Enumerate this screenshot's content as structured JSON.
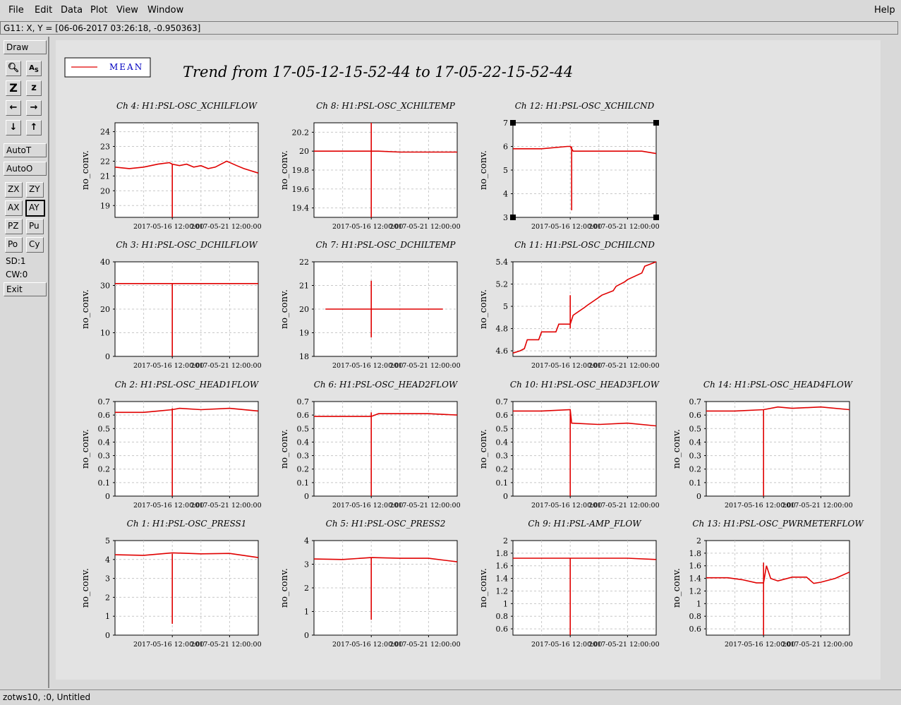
{
  "menu": {
    "file": "File",
    "edit": "Edit",
    "data": "Data",
    "plot": "Plot",
    "view": "View",
    "window": "Window",
    "help": "Help"
  },
  "coord_readout": "G11: X, Y = [06-06-2017 03:26:18, -0.950363]",
  "toolbar": {
    "draw": "Draw",
    "autot": "AutoT",
    "autoo": "AutoO",
    "zx": "ZX",
    "zy": "ZY",
    "ax": "AX",
    "ay": "AY",
    "pz": "PZ",
    "pu": "Pu",
    "po": "Po",
    "cy": "Cy",
    "sd": "SD:1",
    "cw": "CW:0",
    "exit": "Exit"
  },
  "icons": [
    "zoom-tool-icon",
    "text-tool-icon",
    "zoom-in-icon",
    "zoom-out-icon",
    "arrow-left-icon",
    "arrow-right-icon",
    "arrow-down-icon",
    "arrow-up-icon"
  ],
  "status_text": "zotws10, :0, Untitled",
  "legend_label": "MEAN",
  "trend_title": "Trend from 17-05-12-15-52-44 to 17-05-22-15-52-44",
  "colors": {
    "trace": "#e00000",
    "legend_text": "#0000c0",
    "grid": "#c8c8c8",
    "plot_bg": "#ffffff"
  },
  "chart_data": [
    {
      "type": "line",
      "title": "Ch 4: H1:PSL-OSC_XCHILFLOW",
      "ylabel": "no_conv.",
      "yticks": [
        "24",
        "23",
        "22",
        "21",
        "20",
        "19"
      ],
      "ylim": [
        18.2,
        24.6
      ],
      "xticks": [
        "2017-05-16 12:00:00",
        "2017-05-21 12:00:00"
      ],
      "series": [
        {
          "name": "MEAN",
          "x": [
            0,
            0.1,
            0.2,
            0.3,
            0.38,
            0.4,
            0.45,
            0.5,
            0.55,
            0.6,
            0.65,
            0.7,
            0.78,
            0.85,
            0.9,
            1
          ],
          "values": [
            21.6,
            21.5,
            21.6,
            21.8,
            21.9,
            21.8,
            21.7,
            21.8,
            21.6,
            21.7,
            21.5,
            21.6,
            22.0,
            21.7,
            21.5,
            21.2
          ]
        }
      ],
      "spike": {
        "x": 0.4,
        "values": [
          21.8,
          18.2
        ]
      }
    },
    {
      "type": "line",
      "title": "Ch 8: H1:PSL-OSC_XCHILTEMP",
      "ylabel": "no_conv.",
      "yticks": [
        "20.2",
        "20",
        "19.8",
        "19.6",
        "19.4"
      ],
      "ylim": [
        19.3,
        20.3
      ],
      "xticks": [
        "2017-05-16 12:00:00",
        "2017-05-21 12:00:00"
      ],
      "series": [
        {
          "name": "MEAN",
          "x": [
            0,
            0.2,
            0.38,
            0.45,
            0.6,
            0.8,
            1
          ],
          "values": [
            20.0,
            20.0,
            20.0,
            20.0,
            19.99,
            19.99,
            19.99
          ]
        }
      ],
      "spike": {
        "x": 0.4,
        "values": [
          20.3,
          19.3
        ]
      }
    },
    {
      "type": "line",
      "title": "Ch 12: H1:PSL-OSC_XCHILCND",
      "ylabel": "no_conv.",
      "yticks": [
        "7",
        "6",
        "5",
        "4",
        "3"
      ],
      "ylim": [
        3,
        7
      ],
      "xticks": [
        "2017-05-16 12:00:00",
        "2017-05-21 12:00:00"
      ],
      "series": [
        {
          "name": "MEAN",
          "x": [
            0,
            0.2,
            0.38,
            0.4,
            0.42,
            0.5,
            0.6,
            0.8,
            0.9,
            1
          ],
          "values": [
            5.9,
            5.9,
            6.0,
            6.0,
            5.8,
            5.8,
            5.8,
            5.8,
            5.8,
            5.7
          ]
        }
      ],
      "spike": {
        "x": 0.41,
        "values": [
          6.0,
          3.3
        ]
      }
    },
    {
      "type": "line",
      "title": "Ch 3: H1:PSL-OSC_DCHILFLOW",
      "ylabel": "no_conv.",
      "yticks": [
        "40",
        "30",
        "20",
        "10",
        "0"
      ],
      "ylim": [
        0,
        40
      ],
      "xticks": [
        "2017-05-16 12:00:00",
        "2017-05-21 12:00:00"
      ],
      "series": [
        {
          "name": "MEAN",
          "x": [
            0,
            0.4,
            1
          ],
          "values": [
            30.8,
            30.8,
            30.8
          ]
        }
      ],
      "spike": {
        "x": 0.4,
        "values": [
          30.8,
          0
        ]
      }
    },
    {
      "type": "line",
      "title": "Ch 7: H1:PSL-OSC_DCHILTEMP",
      "ylabel": "no_conv.",
      "yticks": [
        "22",
        "21",
        "20",
        "19",
        "18"
      ],
      "ylim": [
        18,
        22
      ],
      "xticks": [
        "2017-05-16 12:00:00",
        "2017-05-21 12:00:00"
      ],
      "series": [
        {
          "name": "MEAN",
          "x": [
            0.08,
            0.4,
            0.9
          ],
          "values": [
            20,
            20,
            20
          ]
        }
      ],
      "spike": {
        "x": 0.4,
        "values": [
          21.2,
          18.8
        ]
      }
    },
    {
      "type": "line",
      "title": "Ch 11: H1:PSL-OSC_DCHILCND",
      "ylabel": "no_conv.",
      "yticks": [
        "5.4",
        "5.2",
        "5",
        "4.8",
        "4.6"
      ],
      "ylim": [
        4.55,
        5.4
      ],
      "xticks": [
        "2017-05-16 12:00:00",
        "2017-05-21 12:00:00"
      ],
      "series": [
        {
          "name": "MEAN",
          "x": [
            0,
            0.05,
            0.08,
            0.1,
            0.18,
            0.2,
            0.3,
            0.32,
            0.4,
            0.42,
            0.5,
            0.52,
            0.6,
            0.62,
            0.7,
            0.72,
            0.78,
            0.8,
            0.9,
            0.92,
            1
          ],
          "values": [
            4.58,
            4.6,
            4.62,
            4.7,
            4.7,
            4.77,
            4.77,
            4.84,
            4.84,
            4.92,
            4.99,
            5.01,
            5.08,
            5.1,
            5.14,
            5.18,
            5.22,
            5.24,
            5.3,
            5.36,
            5.4
          ]
        }
      ],
      "spike": {
        "x": 0.4,
        "values": [
          5.1,
          4.8
        ]
      }
    },
    {
      "type": "line",
      "title": "Ch 2: H1:PSL-OSC_HEAD1FLOW",
      "ylabel": "no_conv.",
      "yticks": [
        "0.7",
        "0.6",
        "0.5",
        "0.4",
        "0.3",
        "0.2",
        "0.1",
        "0"
      ],
      "ylim": [
        0,
        0.7
      ],
      "xticks": [
        "2017-05-16 12:00:00",
        "2017-05-21 12:00:00"
      ],
      "series": [
        {
          "name": "MEAN",
          "x": [
            0,
            0.1,
            0.2,
            0.3,
            0.4,
            0.45,
            0.6,
            0.8,
            1
          ],
          "values": [
            0.62,
            0.62,
            0.62,
            0.63,
            0.64,
            0.65,
            0.64,
            0.65,
            0.63
          ]
        }
      ],
      "spike": {
        "x": 0.4,
        "values": [
          0.65,
          0
        ]
      }
    },
    {
      "type": "line",
      "title": "Ch 6: H1:PSL-OSC_HEAD2FLOW",
      "ylabel": "no_conv.",
      "yticks": [
        "0.7",
        "0.6",
        "0.5",
        "0.4",
        "0.3",
        "0.2",
        "0.1",
        "0"
      ],
      "ylim": [
        0,
        0.7
      ],
      "xticks": [
        "2017-05-16 12:00:00",
        "2017-05-21 12:00:00"
      ],
      "series": [
        {
          "name": "MEAN",
          "x": [
            0,
            0.2,
            0.4,
            0.45,
            0.6,
            0.8,
            1
          ],
          "values": [
            0.59,
            0.59,
            0.59,
            0.61,
            0.61,
            0.61,
            0.6
          ]
        }
      ],
      "spike": {
        "x": 0.4,
        "values": [
          0.62,
          0
        ]
      }
    },
    {
      "type": "line",
      "title": "Ch 10: H1:PSL-OSC_HEAD3FLOW",
      "ylabel": "no_conv.",
      "yticks": [
        "0.7",
        "0.6",
        "0.5",
        "0.4",
        "0.3",
        "0.2",
        "0.1",
        "0"
      ],
      "ylim": [
        0,
        0.7
      ],
      "xticks": [
        "2017-05-16 12:00:00",
        "2017-05-21 12:00:00"
      ],
      "series": [
        {
          "name": "MEAN",
          "x": [
            0,
            0.2,
            0.4,
            0.41,
            0.6,
            0.8,
            1
          ],
          "values": [
            0.63,
            0.63,
            0.64,
            0.54,
            0.53,
            0.54,
            0.52
          ]
        }
      ],
      "spike": {
        "x": 0.4,
        "values": [
          0.64,
          0
        ]
      }
    },
    {
      "type": "line",
      "title": "Ch 14: H1:PSL-OSC_HEAD4FLOW",
      "ylabel": "no_conv.",
      "yticks": [
        "0.7",
        "0.6",
        "0.5",
        "0.4",
        "0.3",
        "0.2",
        "0.1",
        "0"
      ],
      "ylim": [
        0,
        0.7
      ],
      "xticks": [
        "2017-05-16 12:00:00",
        "2017-05-21 12:00:00"
      ],
      "series": [
        {
          "name": "MEAN",
          "x": [
            0,
            0.2,
            0.4,
            0.5,
            0.6,
            0.8,
            1
          ],
          "values": [
            0.63,
            0.63,
            0.64,
            0.66,
            0.65,
            0.66,
            0.64
          ]
        }
      ],
      "spike": {
        "x": 0.4,
        "values": [
          0.64,
          0
        ]
      }
    },
    {
      "type": "line",
      "title": "Ch 1: H1:PSL-OSC_PRESS1",
      "ylabel": "no_conv.",
      "yticks": [
        "5",
        "4",
        "3",
        "2",
        "1",
        "0"
      ],
      "ylim": [
        0,
        5
      ],
      "xticks": [
        "2017-05-16 12:00:00",
        "2017-05-21 12:00:00"
      ],
      "series": [
        {
          "name": "MEAN",
          "x": [
            0,
            0.2,
            0.4,
            0.6,
            0.8,
            1
          ],
          "values": [
            4.25,
            4.22,
            4.35,
            4.3,
            4.32,
            4.1
          ]
        }
      ],
      "spike": {
        "x": 0.4,
        "values": [
          4.3,
          0.6
        ]
      }
    },
    {
      "type": "line",
      "title": "Ch 5: H1:PSL-OSC_PRESS2",
      "ylabel": "no_conv.",
      "yticks": [
        "4",
        "3",
        "2",
        "1",
        "0"
      ],
      "ylim": [
        0,
        4
      ],
      "xticks": [
        "2017-05-16 12:00:00",
        "2017-05-21 12:00:00"
      ],
      "series": [
        {
          "name": "MEAN",
          "x": [
            0,
            0.2,
            0.4,
            0.6,
            0.8,
            1
          ],
          "values": [
            3.22,
            3.2,
            3.28,
            3.25,
            3.25,
            3.1
          ]
        }
      ],
      "spike": {
        "x": 0.4,
        "values": [
          3.28,
          0.65
        ]
      }
    },
    {
      "type": "line",
      "title": "Ch 9: H1:PSL-AMP_FLOW",
      "ylabel": "no_conv.",
      "yticks": [
        "2",
        "1.8",
        "1.6",
        "1.4",
        "1.2",
        "1",
        "0.8",
        "0.6"
      ],
      "ylim": [
        0.5,
        2
      ],
      "xticks": [
        "2017-05-16 12:00:00",
        "2017-05-21 12:00:00"
      ],
      "series": [
        {
          "name": "MEAN",
          "x": [
            0,
            0.4,
            0.8,
            1
          ],
          "values": [
            1.72,
            1.72,
            1.72,
            1.7
          ]
        }
      ],
      "spike": {
        "x": 0.4,
        "values": [
          1.72,
          0.5
        ]
      }
    },
    {
      "type": "line",
      "title": "Ch 13: H1:PSL-OSC_PWRMETERFLOW",
      "ylabel": "no_conv.",
      "yticks": [
        "2",
        "1.8",
        "1.6",
        "1.4",
        "1.2",
        "1",
        "0.8",
        "0.6"
      ],
      "ylim": [
        0.5,
        2
      ],
      "xticks": [
        "2017-05-16 12:00:00",
        "2017-05-21 12:00:00"
      ],
      "series": [
        {
          "name": "MEAN",
          "x": [
            0,
            0.15,
            0.25,
            0.35,
            0.4,
            0.42,
            0.45,
            0.5,
            0.6,
            0.7,
            0.75,
            0.8,
            0.9,
            1
          ],
          "values": [
            1.41,
            1.41,
            1.38,
            1.33,
            1.33,
            1.6,
            1.4,
            1.36,
            1.42,
            1.42,
            1.32,
            1.34,
            1.4,
            1.5
          ]
        }
      ],
      "spike": {
        "x": 0.4,
        "values": [
          1.65,
          0.5
        ]
      }
    }
  ]
}
